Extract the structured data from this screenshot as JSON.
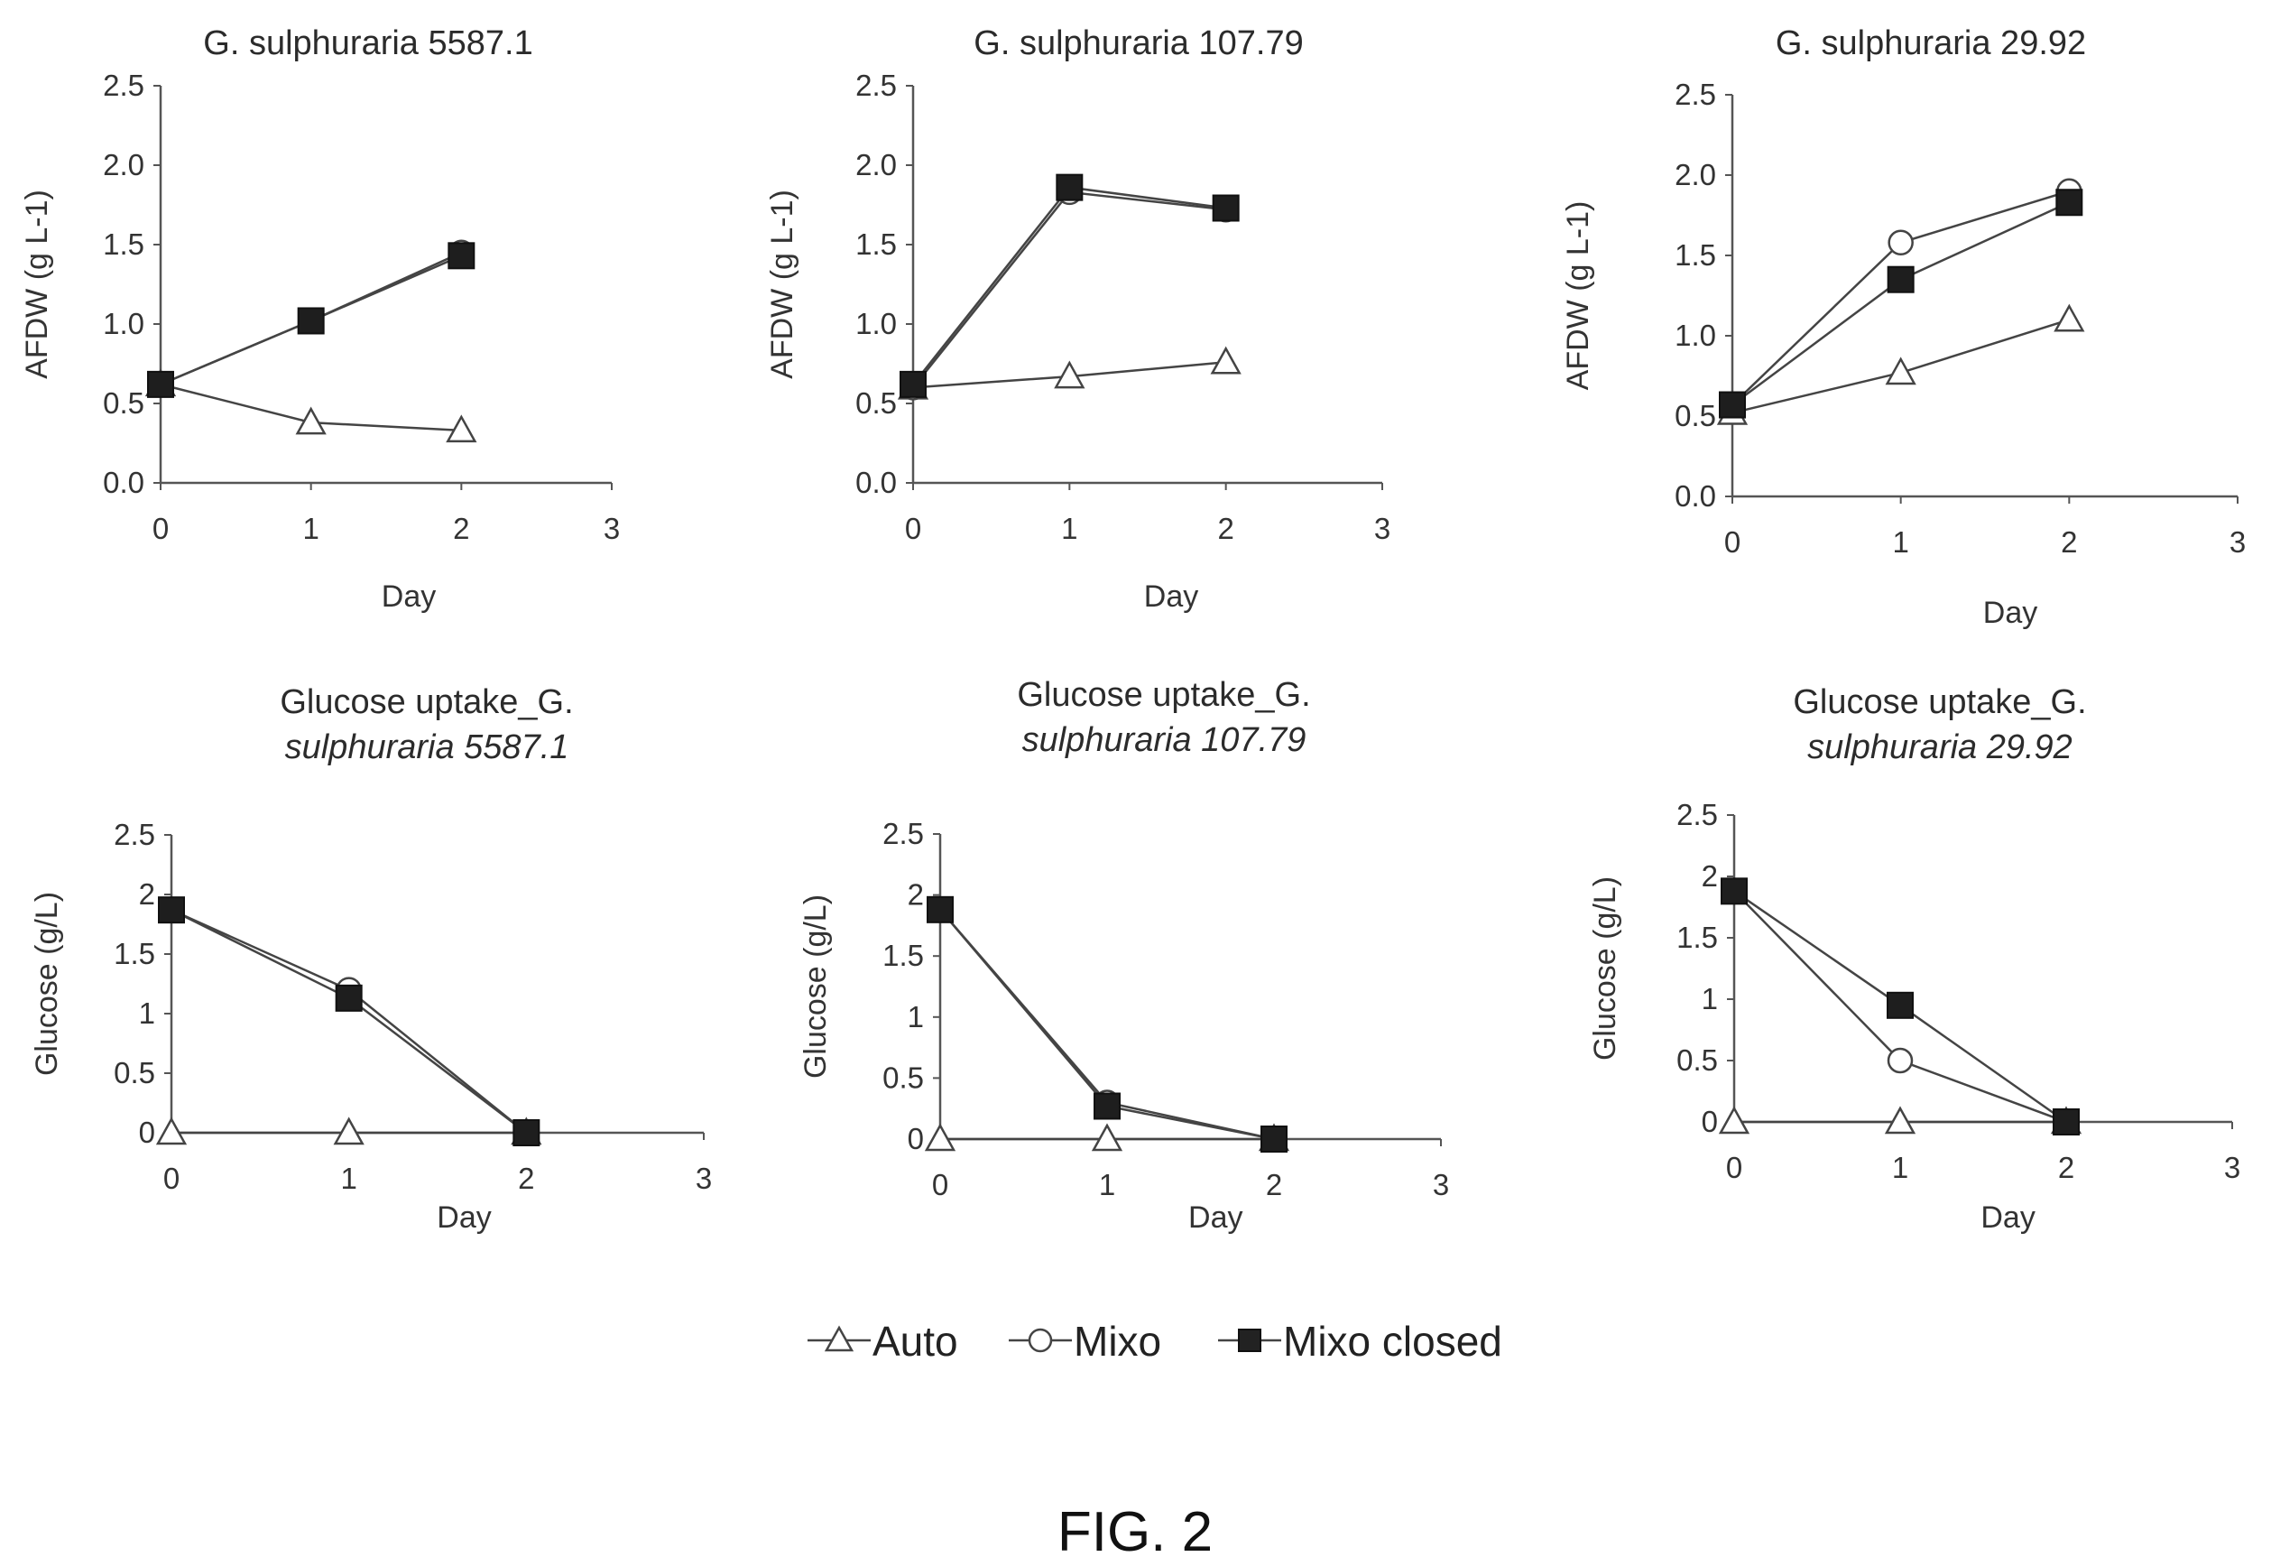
{
  "figure_label": "FIG. 2",
  "legend": [
    {
      "name": "Auto",
      "marker": "open-triangle"
    },
    {
      "name": "Mixo",
      "marker": "open-circle"
    },
    {
      "name": "Mixo closed",
      "marker": "filled-square"
    }
  ],
  "chart_data": [
    {
      "type": "line",
      "title": "G. sulphuraria 5587.1",
      "xlabel": "Day",
      "ylabel": "AFDW (g L-1)",
      "x": [
        0,
        1,
        2
      ],
      "xlim": [
        0,
        3
      ],
      "ylim": [
        0,
        2.5
      ],
      "xticks": [
        "0",
        "1",
        "2",
        "3"
      ],
      "yticks": [
        "0.0",
        "0.5",
        "1.0",
        "1.5",
        "2.0",
        "2.5"
      ],
      "series": [
        {
          "name": "Auto",
          "values": [
            0.62,
            0.38,
            0.33
          ]
        },
        {
          "name": "Mixo",
          "values": [
            0.62,
            1.02,
            1.45
          ]
        },
        {
          "name": "Mixo closed",
          "values": [
            0.62,
            1.02,
            1.43
          ]
        }
      ]
    },
    {
      "type": "line",
      "title": "G. sulphuraria 107.79",
      "xlabel": "Day",
      "ylabel": "AFDW (g L-1)",
      "x": [
        0,
        1,
        2
      ],
      "xlim": [
        0,
        3
      ],
      "ylim": [
        0,
        2.5
      ],
      "xticks": [
        "0",
        "1",
        "2",
        "3"
      ],
      "yticks": [
        "0.0",
        "0.5",
        "1.0",
        "1.5",
        "2.0",
        "2.5"
      ],
      "series": [
        {
          "name": "Auto",
          "values": [
            0.6,
            0.67,
            0.76
          ]
        },
        {
          "name": "Mixo",
          "values": [
            0.6,
            1.83,
            1.72
          ]
        },
        {
          "name": "Mixo closed",
          "values": [
            0.62,
            1.86,
            1.73
          ]
        }
      ]
    },
    {
      "type": "line",
      "title": "G. sulphuraria 29.92",
      "xlabel": "Day",
      "ylabel": "AFDW (g L-1)",
      "x": [
        0,
        1,
        2
      ],
      "xlim": [
        0,
        3
      ],
      "ylim": [
        0,
        2.5
      ],
      "xticks": [
        "0",
        "1",
        "2",
        "3"
      ],
      "yticks": [
        "0.0",
        "0.5",
        "1.0",
        "1.5",
        "2.0",
        "2.5"
      ],
      "series": [
        {
          "name": "Auto",
          "values": [
            0.52,
            0.77,
            1.1
          ]
        },
        {
          "name": "Mixo",
          "values": [
            0.57,
            1.58,
            1.9
          ]
        },
        {
          "name": "Mixo closed",
          "values": [
            0.57,
            1.35,
            1.83
          ]
        }
      ]
    },
    {
      "type": "line",
      "title": "Glucose uptake_G.",
      "title_line2": "sulphuraria 5587.1",
      "xlabel": "Day",
      "ylabel": "Glucose (g/L)",
      "x": [
        0,
        1,
        2
      ],
      "xlim": [
        0,
        3
      ],
      "ylim": [
        0,
        2.5
      ],
      "xticks": [
        "0",
        "1",
        "2",
        "3"
      ],
      "yticks": [
        "0",
        "0.5",
        "1",
        "1.5",
        "2",
        "2.5"
      ],
      "series": [
        {
          "name": "Auto",
          "values": [
            0,
            0,
            0
          ]
        },
        {
          "name": "Mixo",
          "values": [
            1.87,
            1.2,
            0
          ]
        },
        {
          "name": "Mixo closed",
          "values": [
            1.87,
            1.13,
            0
          ]
        }
      ]
    },
    {
      "type": "line",
      "title": "Glucose uptake_G.",
      "title_line2": "sulphuraria 107.79",
      "xlabel": "Day",
      "ylabel": "Glucose (g/L)",
      "x": [
        0,
        1,
        2
      ],
      "xlim": [
        0,
        3
      ],
      "ylim": [
        0,
        2.5
      ],
      "xticks": [
        "0",
        "1",
        "2",
        "3"
      ],
      "yticks": [
        "0",
        "0.5",
        "1",
        "1.5",
        "2",
        "2.5"
      ],
      "series": [
        {
          "name": "Auto",
          "values": [
            0,
            0,
            0
          ]
        },
        {
          "name": "Mixo",
          "values": [
            1.88,
            0.3,
            0
          ]
        },
        {
          "name": "Mixo closed",
          "values": [
            1.88,
            0.27,
            0
          ]
        }
      ]
    },
    {
      "type": "line",
      "title": "Glucose uptake_G.",
      "title_line2": "sulphuraria 29.92",
      "xlabel": "Day",
      "ylabel": "Glucose (g/L)",
      "x": [
        0,
        1,
        2
      ],
      "xlim": [
        0,
        3
      ],
      "ylim": [
        0,
        2.5
      ],
      "xticks": [
        "0",
        "1",
        "2",
        "3"
      ],
      "yticks": [
        "0",
        "0.5",
        "1",
        "1.5",
        "2",
        "2.5"
      ],
      "series": [
        {
          "name": "Auto",
          "values": [
            0,
            0,
            0
          ]
        },
        {
          "name": "Mixo",
          "values": [
            1.88,
            0.5,
            0
          ]
        },
        {
          "name": "Mixo closed",
          "values": [
            1.88,
            0.95,
            0
          ]
        }
      ]
    }
  ]
}
